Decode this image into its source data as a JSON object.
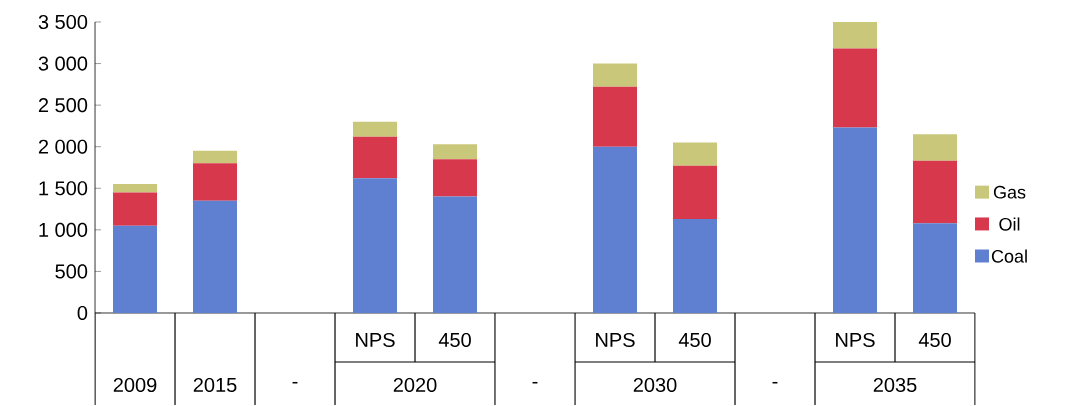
{
  "chart_data": {
    "type": "bar",
    "stacked": true,
    "categories": [
      "2009",
      "2015",
      "-",
      "NPS",
      "450",
      "-",
      "NPS",
      "450",
      "-",
      "NPS",
      "450"
    ],
    "annotations": [
      "2020",
      "2030",
      "2035"
    ],
    "series": [
      {
        "name": "Coal",
        "color": "#5f80d0",
        "values": [
          1050,
          1350,
          null,
          1620,
          1400,
          null,
          2000,
          1130,
          null,
          2230,
          1080
        ]
      },
      {
        "name": "Oil",
        "color": "#d8384c",
        "values": [
          400,
          450,
          null,
          500,
          450,
          null,
          720,
          640,
          null,
          950,
          750
        ]
      },
      {
        "name": "Gas",
        "color": "#c9c77a",
        "values": [
          100,
          150,
          null,
          180,
          180,
          null,
          280,
          280,
          null,
          320,
          320
        ]
      }
    ],
    "ylim": [
      0,
      3500
    ],
    "yticks": [
      0,
      {
        "value": 500,
        "label": "500"
      },
      {
        "value": 1000,
        "label": "1 000"
      },
      {
        "value": 1500,
        "label": "1 500"
      },
      {
        "value": 2000,
        "label": "2 000"
      },
      {
        "value": 2500,
        "label": "2 500"
      },
      {
        "value": 3000,
        "label": "3 000"
      },
      {
        "value": 3500,
        "label": "3 500"
      }
    ],
    "legend": "right",
    "grid": false
  }
}
